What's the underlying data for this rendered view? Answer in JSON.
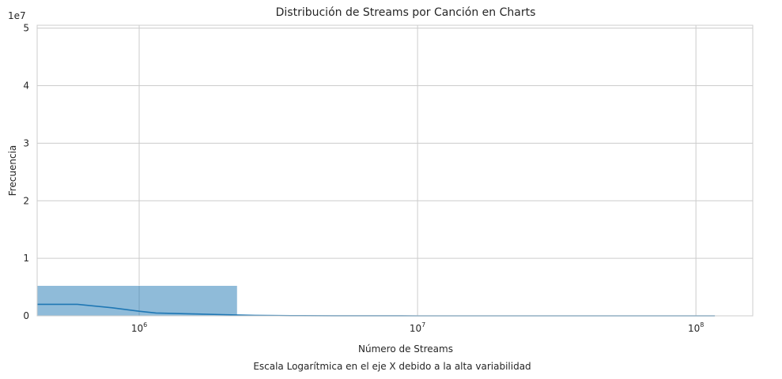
{
  "chart_data": {
    "type": "bar",
    "title": "Distribución de Streams por Canción en Charts",
    "xlabel": "Número de Streams",
    "caption": "Escala Logarítmica en el eje X debido a la alta variabilidad",
    "ylabel": "Frecuencia",
    "x_scale": "log",
    "xlim": [
      430000,
      160000000
    ],
    "ylim": [
      0,
      50500000
    ],
    "y_offset_label": "1e7",
    "x_ticks": [
      {
        "value": 1000000,
        "base": "10",
        "exp": "6"
      },
      {
        "value": 10000000,
        "base": "10",
        "exp": "7"
      },
      {
        "value": 100000000,
        "base": "10",
        "exp": "8"
      }
    ],
    "y_ticks": [
      {
        "value": 0,
        "label": "0"
      },
      {
        "value": 10000000,
        "label": "1"
      },
      {
        "value": 20000000,
        "label": "2"
      },
      {
        "value": 30000000,
        "label": "3"
      },
      {
        "value": 40000000,
        "label": "4"
      },
      {
        "value": 50000000,
        "label": "5"
      }
    ],
    "bins": [
      {
        "x0": 430000,
        "x1": 2250000,
        "count": 5250000
      }
    ],
    "kde": {
      "x": [
        430000,
        600000,
        800000,
        1000000,
        1150000,
        1500000,
        2000000,
        2600000,
        3500000,
        5000000,
        10000000,
        30000000,
        117000000
      ],
      "y": [
        2000000,
        2000000,
        1400000,
        800000,
        500000,
        350000,
        200000,
        80000,
        30000,
        10000,
        5000,
        2000,
        1000
      ]
    },
    "grid": true,
    "colors": {
      "bar": "#1f77b4",
      "line": "#1f77b4",
      "grid": "#cccccc",
      "spine": "#cccccc"
    }
  }
}
